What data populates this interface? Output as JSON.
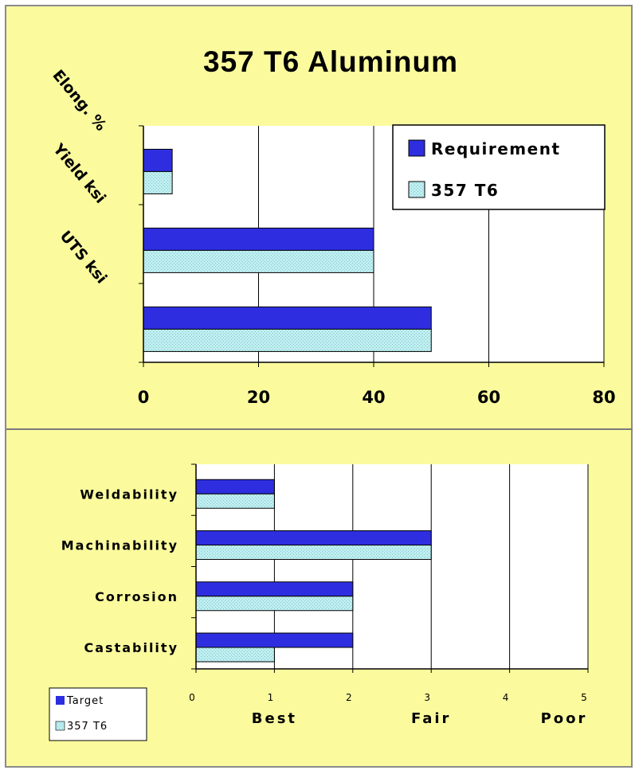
{
  "colors": {
    "panel_bg": "#fbfb9e",
    "plot_bg": "#ffffff",
    "requirement": "#2e2ee0",
    "alloy": "#bfeef0"
  },
  "chart_data": [
    {
      "type": "bar",
      "orientation": "horizontal",
      "title": "357 T6 Aluminum",
      "categories": [
        "Elong. %",
        "Yield ksi",
        "UTS ksi"
      ],
      "series": [
        {
          "name": "Requirement",
          "values": [
            5,
            40,
            50
          ],
          "color": "#2e2ee0"
        },
        {
          "name": "357 T6",
          "values": [
            5,
            40,
            50
          ],
          "color": "#bfeef0"
        }
      ],
      "x_ticks": [
        "0",
        "20",
        "40",
        "60",
        "80"
      ],
      "xlim": [
        0,
        80
      ],
      "grid": true,
      "legend": "top-right"
    },
    {
      "type": "bar",
      "orientation": "horizontal",
      "categories": [
        "Weldability",
        "Machinability",
        "Corrosion",
        "Castability"
      ],
      "series": [
        {
          "name": "Target",
          "values": [
            1,
            3,
            2,
            2
          ],
          "color": "#2e2ee0"
        },
        {
          "name": "357 T6",
          "values": [
            1,
            3,
            2,
            1
          ],
          "color": "#bfeef0"
        }
      ],
      "x_ticks": [
        "0",
        "1",
        "2",
        "3",
        "4",
        "5"
      ],
      "xlim": [
        0,
        5
      ],
      "scale_labels": [
        {
          "label": "Best",
          "at": 1
        },
        {
          "label": "Fair",
          "at": 3
        },
        {
          "label": "Poor",
          "at": 5
        }
      ],
      "grid": true,
      "legend": "bottom-left"
    }
  ]
}
